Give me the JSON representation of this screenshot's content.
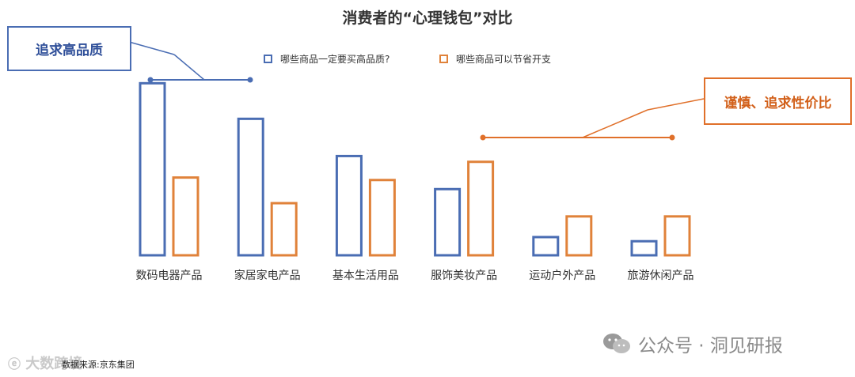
{
  "chart_data": {
    "type": "bar",
    "title": "消费者的“心理钱包”对比",
    "categories": [
      "数码电器产品",
      "家居家电产品",
      "基本生活用品",
      "服饰美妆产品",
      "运动户外产品",
      "旅游休闲产品"
    ],
    "series": [
      {
        "name": "哪些商品一定要买高品质?",
        "values": [
          208,
          165,
          120,
          80,
          22,
          17
        ],
        "color": "#4a6db3"
      },
      {
        "name": "哪些商品可以节省开支",
        "values": [
          94,
          63,
          91,
          113,
          47,
          47
        ],
        "color": "#e0823a"
      }
    ],
    "ylim": [
      0,
      215
    ],
    "grid": false,
    "legend": "top-center",
    "annotations": [
      {
        "text": "追求高品质",
        "color": "#4a6db3"
      },
      {
        "text": "谨慎、追求性价比",
        "color": "#e0702a"
      }
    ]
  },
  "footer": {
    "source": "数据来源:京东集团",
    "watermark_left": "大数跨境",
    "watermark_right": "公众号 · 洞见研报"
  }
}
